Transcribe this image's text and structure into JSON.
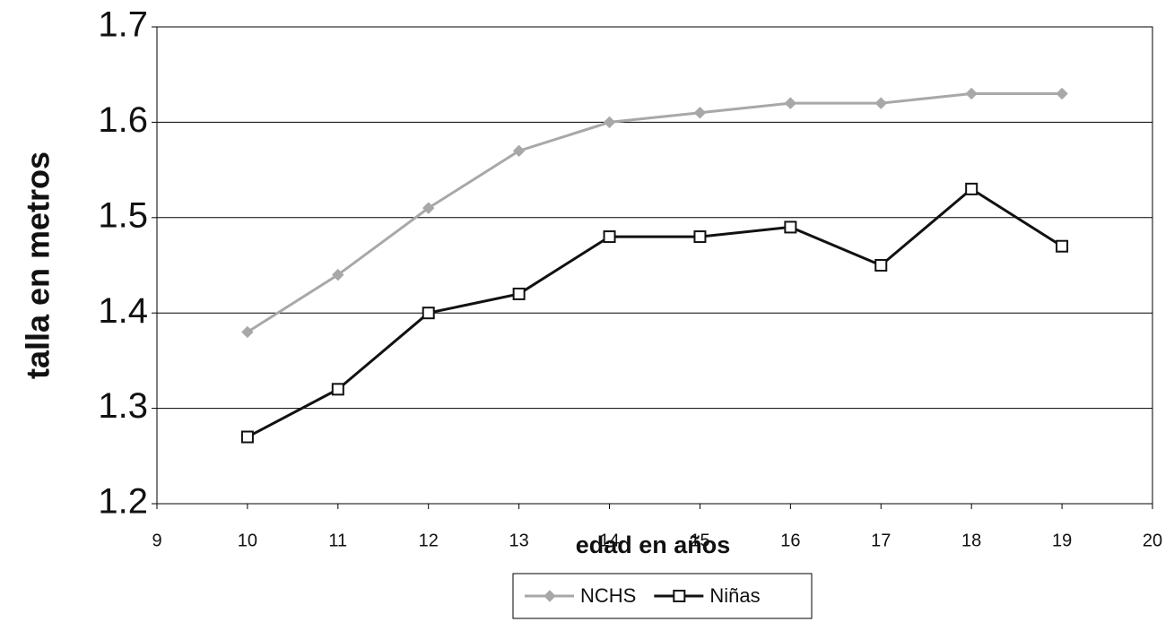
{
  "chart_data": {
    "type": "line",
    "x_label": "edad en años",
    "y_label": "talla en metros",
    "xlim": [
      9,
      20
    ],
    "xticks": [
      9,
      10,
      11,
      12,
      13,
      14,
      15,
      16,
      17,
      18,
      19,
      20
    ],
    "ylim": [
      1.2,
      1.7
    ],
    "yticks": [
      1.2,
      1.3,
      1.4,
      1.5,
      1.6,
      1.7
    ],
    "grid": true,
    "legend": "bottom",
    "x": [
      10,
      11,
      12,
      13,
      14,
      15,
      16,
      17,
      18,
      19
    ],
    "series": [
      {
        "name": "NCHS",
        "color": "#a8a8a8",
        "marker": "diamond",
        "values": [
          1.38,
          1.44,
          1.51,
          1.57,
          1.6,
          1.61,
          1.62,
          1.62,
          1.63,
          1.63
        ]
      },
      {
        "name": "Niñas",
        "color": "#111111",
        "marker": "square",
        "values": [
          1.27,
          1.32,
          1.4,
          1.42,
          1.48,
          1.48,
          1.49,
          1.45,
          1.53,
          1.47
        ]
      }
    ]
  }
}
